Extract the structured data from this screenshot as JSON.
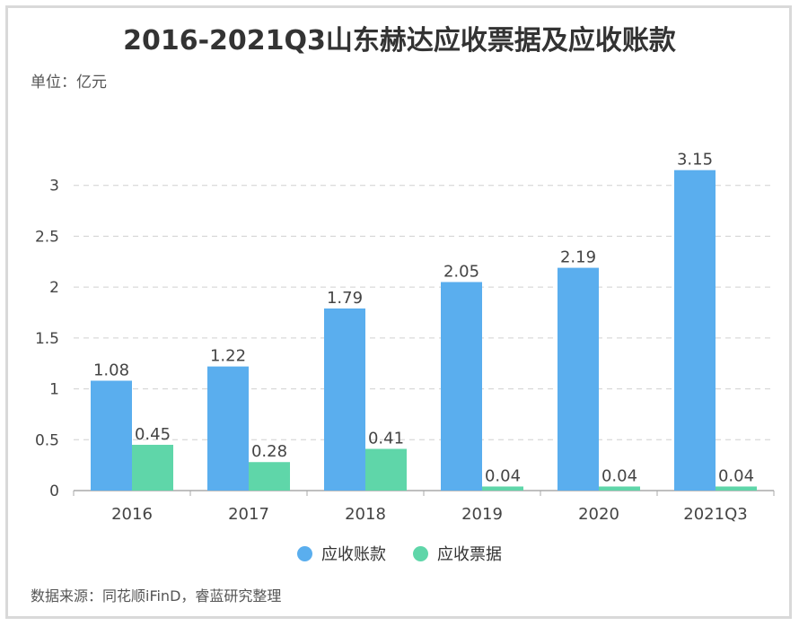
{
  "title": "2016-2021Q3山东赫达应收票据及应收账款",
  "unit_label": "单位：亿元",
  "source": "数据来源：同花顺iFinD，睿蓝研究整理",
  "colors": {
    "receivables": "#5aaeee",
    "notes": "#5fd6a9"
  },
  "chart_data": {
    "type": "bar",
    "title": "2016-2021Q3山东赫达应收票据及应收账款",
    "categories": [
      "2016",
      "2017",
      "2018",
      "2019",
      "2020",
      "2021Q3"
    ],
    "series": [
      {
        "name": "应收账款",
        "values": [
          1.08,
          1.22,
          1.79,
          2.05,
          2.19,
          3.15
        ],
        "labels": [
          "1.08",
          "1.22",
          "1.79",
          "2.05",
          "2.19",
          "3.15"
        ]
      },
      {
        "name": "应收票据",
        "values": [
          0.45,
          0.28,
          0.41,
          0.04,
          0.04,
          0.04
        ],
        "labels": [
          "0.45",
          "0.28",
          "0.41",
          "0.04",
          "0.04",
          "0.04"
        ]
      }
    ],
    "ylim": [
      0,
      3.5
    ],
    "y_ticks": [
      0,
      0.5,
      1,
      1.5,
      2,
      2.5,
      3
    ],
    "y_tick_labels": [
      "0",
      "0.5",
      "1",
      "1.5",
      "2",
      "2.5",
      "3"
    ],
    "grid": true,
    "legend_position": "bottom-center"
  }
}
